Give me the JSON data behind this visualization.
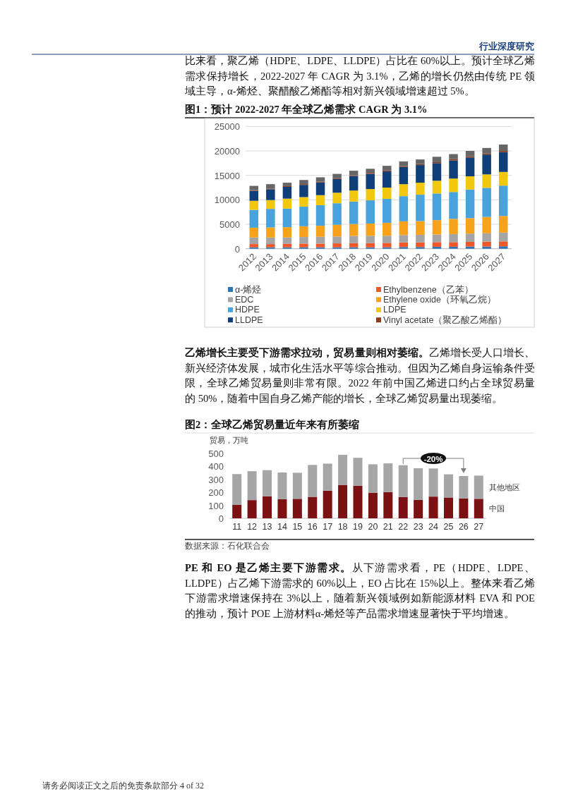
{
  "chart_data": [
    {
      "type": "bar",
      "title": "图1：预计 2022-2027 年全球乙烯需求 CAGR 为 3.1%",
      "stacked": true,
      "categories": [
        "2012",
        "2013",
        "2014",
        "2015",
        "2016",
        "2017",
        "2018",
        "2019",
        "2020",
        "2021",
        "2022",
        "2023",
        "2024",
        "2025",
        "2026",
        "2027"
      ],
      "series": [
        {
          "name": "α-烯烃",
          "color": "#2e75b6",
          "values": [
            300,
            300,
            300,
            300,
            300,
            300,
            300,
            300,
            300,
            350,
            350,
            400,
            400,
            450,
            450,
            500
          ]
        },
        {
          "name": "Ethylbenzene（乙苯）",
          "color": "#f0582a",
          "values": [
            650,
            650,
            700,
            750,
            750,
            800,
            850,
            850,
            900,
            950,
            950,
            950,
            950,
            950,
            1000,
            1000
          ]
        },
        {
          "name": "EDC",
          "color": "#a5a5a5",
          "values": [
            1350,
            1350,
            1300,
            1350,
            1400,
            1400,
            1450,
            1500,
            1450,
            1500,
            1550,
            1550,
            1650,
            1700,
            1700,
            1800
          ]
        },
        {
          "name": "Ethylene oxide（环氧乙烷）",
          "color": "#f7a21b",
          "values": [
            2000,
            2050,
            2100,
            2200,
            2250,
            2400,
            2450,
            2500,
            2650,
            2800,
            2800,
            2950,
            3100,
            3150,
            3350,
            3400
          ]
        },
        {
          "name": "HDPE",
          "color": "#48a3dd",
          "values": [
            3650,
            3800,
            3800,
            4000,
            4200,
            4400,
            4600,
            4750,
            4900,
            5150,
            5400,
            5450,
            5500,
            5850,
            5950,
            6200
          ]
        },
        {
          "name": "LDPE",
          "color": "#f2c80f",
          "values": [
            1850,
            1800,
            2050,
            1950,
            2050,
            2150,
            2250,
            2300,
            2300,
            2450,
            2450,
            2600,
            2750,
            2700,
            2750,
            2800
          ]
        },
        {
          "name": "LLDPE",
          "color": "#0e3f78",
          "values": [
            2050,
            2200,
            2400,
            2500,
            2600,
            2800,
            2950,
            3100,
            3300,
            3500,
            3600,
            3600,
            3700,
            3850,
            4050,
            4050
          ]
        },
        {
          "name": "Vinyl acetate（聚乙酸乙烯酯）",
          "color": "#8b3a1a",
          "values": [
            150,
            150,
            150,
            150,
            150,
            150,
            150,
            200,
            200,
            200,
            200,
            200,
            250,
            250,
            250,
            250
          ]
        },
        {
          "color": "#666666",
          "values": [
            850,
            900,
            700,
            850,
            900,
            900,
            950,
            850,
            950,
            950,
            950,
            1100,
            1050,
            1100,
            1100,
            1300
          ]
        }
      ],
      "ylim": [
        0,
        25000
      ],
      "yticks": [
        0,
        5000,
        10000,
        15000,
        20000,
        25000
      ],
      "grid": "y",
      "legend": "bottom",
      "annotations": [
        "行业深度研究",
        "比来看，聚乙烯（HDPE、LDPE、LLDPE）占比在 60%以上。预计全球乙烯需求保持增长，2022-2027 年 CAGR 为 3.1%，乙烯的增长仍然由传统 PE 领域主导，α-烯烃、聚醋酸乙烯酯等相对新兴领域增速超过 5%。"
      ]
    },
    {
      "type": "bar",
      "title": "图2：全球乙烯贸易量近年来有所萎缩",
      "ylabel": "贸易，万吨",
      "stacked": true,
      "categories": [
        "11",
        "12",
        "13",
        "14",
        "15",
        "16",
        "17",
        "18",
        "19",
        "20",
        "21",
        "22",
        "23",
        "24",
        "25",
        "26",
        "27"
      ],
      "series": [
        {
          "name": "中国",
          "color": "#7b1113",
          "values": [
            103,
            140,
            170,
            148,
            150,
            165,
            213,
            257,
            250,
            197,
            202,
            163,
            142,
            167,
            160,
            153,
            150
          ]
        },
        {
          "name": "其他地区",
          "color": "#a6a6a6",
          "values": [
            237,
            222,
            200,
            204,
            200,
            245,
            207,
            231,
            215,
            218,
            220,
            245,
            243,
            216,
            178,
            172,
            178
          ]
        }
      ],
      "ylim": [
        0,
        500
      ],
      "yticks": [
        0,
        100,
        200,
        300,
        400,
        500
      ],
      "legend": "right",
      "annotations": [
        "-20%",
        "数据来源：石化联合会",
        "乙烯增长主要受下游需求拉动，贸易量则相对萎缩。",
        "乙烯增长受人口增长、新兴经济体发展，城市化生活水平等综合推动。但因为乙烯自身运输条件受限，全球乙烯贸易量则非常有限。2022 年前中国乙烯进口约占全球贸易量的 50%，随着中国自身乙烯产能的增长，全球乙烯贸易量出现萎缩。",
        "PE 和 EO 是乙烯主要下游需求。",
        "从下游需求看，PE（HDPE、LDPE、LLDPE）占乙烯下游需求的 60%以上，EO 占比在 15%以上。整体来看乙烯下游需求增速保持在 3%以上，随着新兴领域例如新能源材料 EVA 和 POE 的推动，预计 POE 上游材料α-烯烃等产品需求增速显著快于平均增速。",
        "请务必阅读正文之后的免责条款部分 4 of 32"
      ]
    }
  ]
}
